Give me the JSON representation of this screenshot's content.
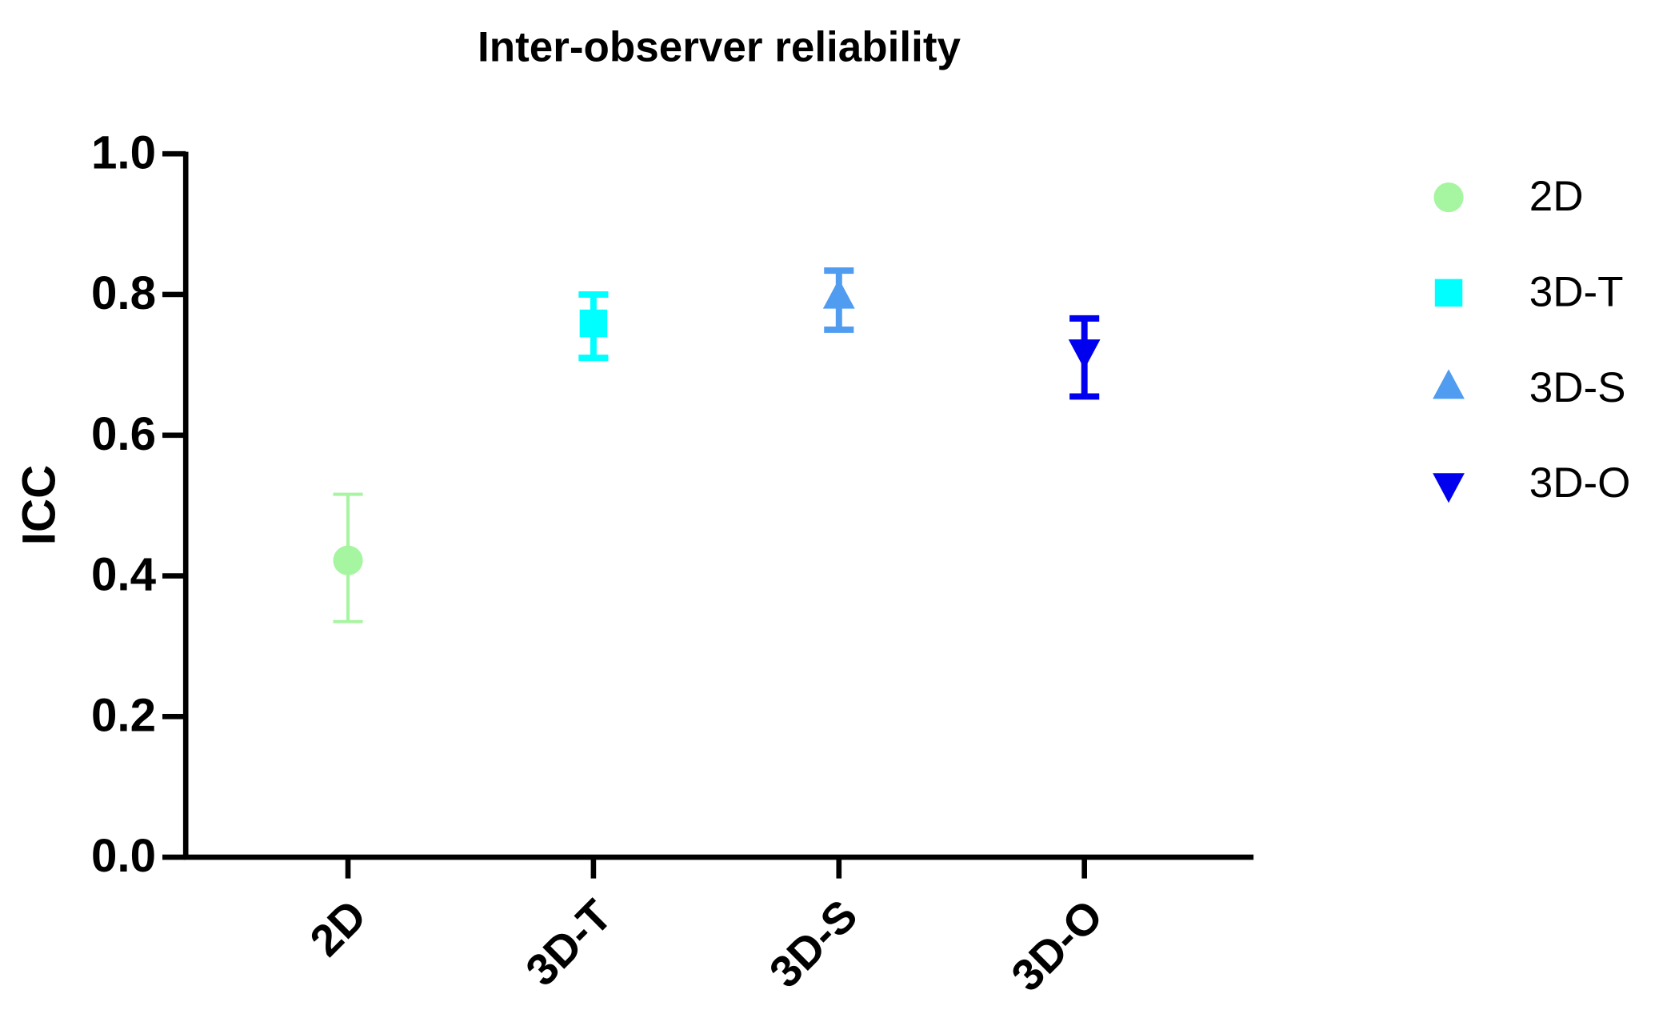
{
  "chart_data": {
    "type": "dot-errorbar",
    "title": "Inter-observer reliability",
    "y_label": "ICC",
    "categories": [
      "2D",
      "3D-T",
      "3D-S",
      "3D-O"
    ],
    "values": [
      0.422,
      0.759,
      0.795,
      0.721
    ],
    "lower": [
      0.335,
      0.71,
      0.75,
      0.655
    ],
    "upper": [
      0.516,
      0.8,
      0.834,
      0.766
    ],
    "colors": [
      "#a6f5a0",
      "#00ffff",
      "#4f9cf0",
      "#0000ee"
    ],
    "markers": [
      "circle",
      "square",
      "triangle-up",
      "triangle-down"
    ],
    "ylim": [
      0,
      1
    ],
    "yticks": [
      {
        "value": 0,
        "label": "0.0"
      },
      {
        "value": 0.2,
        "label": "0.2"
      },
      {
        "value": 0.4,
        "label": "0.4"
      },
      {
        "value": 0.6,
        "label": "0.6"
      },
      {
        "value": 0.8,
        "label": "0.8"
      },
      {
        "value": 1,
        "label": "1.0"
      }
    ],
    "grid": false,
    "legend": "right"
  }
}
